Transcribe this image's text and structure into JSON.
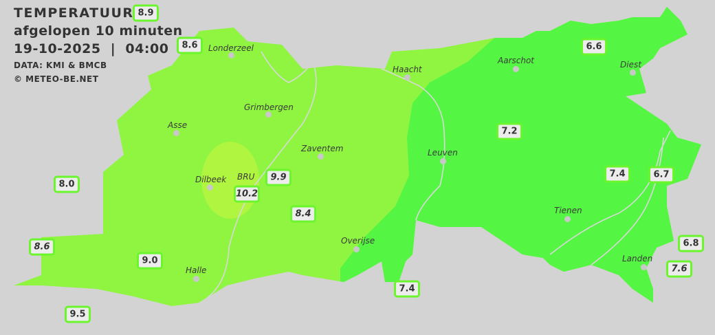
{
  "header": {
    "title": "TEMPERATUUR",
    "subtitle": "afgelopen 10 minuten",
    "datetime": "19-10-2025  |  04:00",
    "source": "DATA: KMI & BMCB",
    "copyright": "© METEO-BE.NET"
  },
  "colors": {
    "background": "#d3d3d3",
    "zone_8_to_9": "#8ff541",
    "zone_9_to_10": "#b0f53f",
    "zone_7_to_8": "#55f544",
    "label_border": "#6af52c"
  },
  "cities": [
    "Londerzeel",
    "Haacht",
    "Aarschot",
    "Diest",
    "Grimbergen",
    "Asse",
    "Zaventem",
    "Leuven",
    "Dilbeek",
    "BRU",
    "Tienen",
    "Overijse",
    "Halle",
    "Landen"
  ],
  "stations": [
    {
      "value": "8.9",
      "italic": false
    },
    {
      "value": "8.6",
      "italic": false
    },
    {
      "value": "6.6",
      "italic": false
    },
    {
      "value": "7.2",
      "italic": false
    },
    {
      "value": "8.0",
      "italic": false
    },
    {
      "value": "10.2",
      "italic": true
    },
    {
      "value": "9.9",
      "italic": true
    },
    {
      "value": "8.4",
      "italic": true
    },
    {
      "value": "7.4",
      "italic": false
    },
    {
      "value": "6.7",
      "italic": false
    },
    {
      "value": "8.6",
      "italic": true
    },
    {
      "value": "9.0",
      "italic": false
    },
    {
      "value": "9.5",
      "italic": false
    },
    {
      "value": "7.4",
      "italic": false
    },
    {
      "value": "6.8",
      "italic": false
    },
    {
      "value": "7.6",
      "italic": true
    }
  ]
}
